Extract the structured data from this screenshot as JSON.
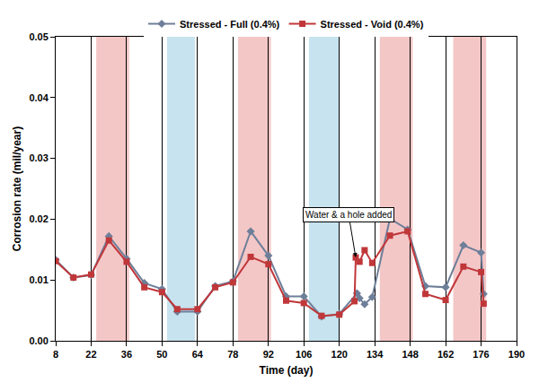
{
  "chart_data": {
    "type": "line",
    "x_label": "Time (day)",
    "y_label": "Corrosion rate (mil/year)",
    "xlim": [
      8,
      190
    ],
    "xticks": [
      8,
      22,
      36,
      50,
      64,
      78,
      92,
      106,
      120,
      134,
      148,
      162,
      176,
      190
    ],
    "ylim": [
      0,
      0.05
    ],
    "yticks": [
      {
        "value": 0,
        "label": "0.00"
      },
      {
        "value": 0.01,
        "label": "0.01"
      },
      {
        "value": 0.02,
        "label": "0.02"
      },
      {
        "value": 0.03,
        "label": "0.03"
      },
      {
        "value": 0.04,
        "label": "0.04"
      },
      {
        "value": 0.05,
        "label": "0.05"
      }
    ],
    "grid": true,
    "legend": "top",
    "shaded_periods": [
      {
        "start": 24,
        "end": 37,
        "color": "#f4c7c7"
      },
      {
        "start": 52,
        "end": 63,
        "color": "#c6e3ef"
      },
      {
        "start": 80,
        "end": 93,
        "color": "#f4c7c7"
      },
      {
        "start": 108,
        "end": 120,
        "color": "#c6e3ef"
      },
      {
        "start": 136,
        "end": 149,
        "color": "#f4c7c7"
      },
      {
        "start": 165,
        "end": 178,
        "color": "#f4c7c7"
      }
    ],
    "annotations": [
      {
        "text": "Water & a hole added",
        "x": 126.5,
        "y": 0.0137
      }
    ],
    "series": [
      {
        "name": "Stressed - Full (0.4%)",
        "color": "#6e7f99",
        "marker": "diamond",
        "line_style": "solid",
        "x": [
          8,
          15,
          22,
          29,
          36,
          43,
          50,
          56,
          64,
          71,
          78,
          85,
          92,
          99,
          106,
          113,
          120,
          127,
          128,
          130,
          133,
          140,
          147,
          154,
          162,
          169,
          176,
          177
        ],
        "values": [
          0.0133,
          0.0104,
          0.0108,
          0.0172,
          0.0135,
          0.0095,
          0.0085,
          0.0048,
          0.0048,
          0.009,
          0.0098,
          0.018,
          0.014,
          0.0073,
          0.0073,
          0.004,
          0.0044,
          0.0078,
          0.007,
          0.006,
          0.0072,
          0.0201,
          0.0183,
          0.009,
          0.0088,
          0.0157,
          0.0145,
          0.0077
        ]
      },
      {
        "name": "Stressed - Void (0.4%)",
        "color": "#c0373a",
        "marker": "square",
        "line_style": "solid",
        "x": [
          8,
          15,
          22,
          29,
          36,
          43,
          50,
          56,
          64,
          71,
          78,
          85,
          92,
          99,
          106,
          113,
          120,
          126,
          126.5,
          128,
          130,
          133,
          140,
          147,
          154,
          162,
          169,
          176,
          177
        ],
        "values": [
          0.0131,
          0.0104,
          0.0109,
          0.0165,
          0.013,
          0.0088,
          0.008,
          0.0052,
          0.0052,
          0.0088,
          0.0096,
          0.0138,
          0.0126,
          0.0066,
          0.0062,
          0.0041,
          0.0043,
          0.0065,
          0.0137,
          0.013,
          0.0149,
          0.0128,
          0.0173,
          0.018,
          0.0077,
          0.0067,
          0.0122,
          0.0113,
          0.0061
        ]
      }
    ]
  }
}
